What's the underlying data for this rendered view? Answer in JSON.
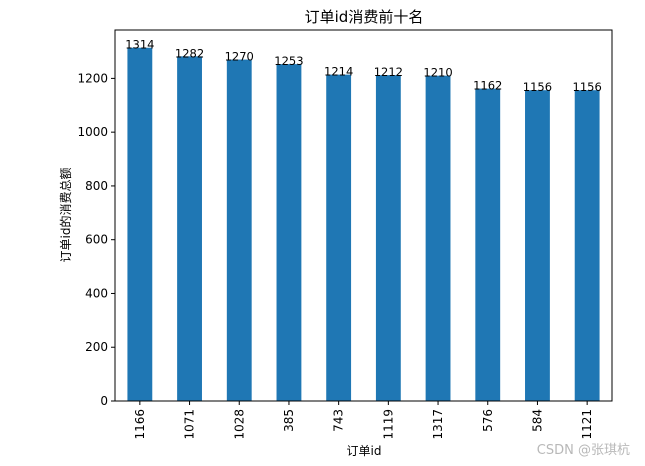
{
  "chart_data": {
    "type": "bar",
    "title": "订单id消费前十名",
    "xlabel": "订单id",
    "ylabel": "订单id的消费总额",
    "categories": [
      "1166",
      "1071",
      "1028",
      "385",
      "743",
      "1119",
      "1317",
      "576",
      "584",
      "1121"
    ],
    "values": [
      1314,
      1282,
      1270,
      1253,
      1214,
      1212,
      1210,
      1162,
      1156,
      1156
    ],
    "yticks": [
      0,
      200,
      400,
      600,
      800,
      1000,
      1200
    ],
    "ylim": [
      0,
      1380
    ],
    "bar_color": "#1f77b4",
    "grid": false,
    "legend": "none"
  },
  "watermark": "CSDN @张琪杭"
}
